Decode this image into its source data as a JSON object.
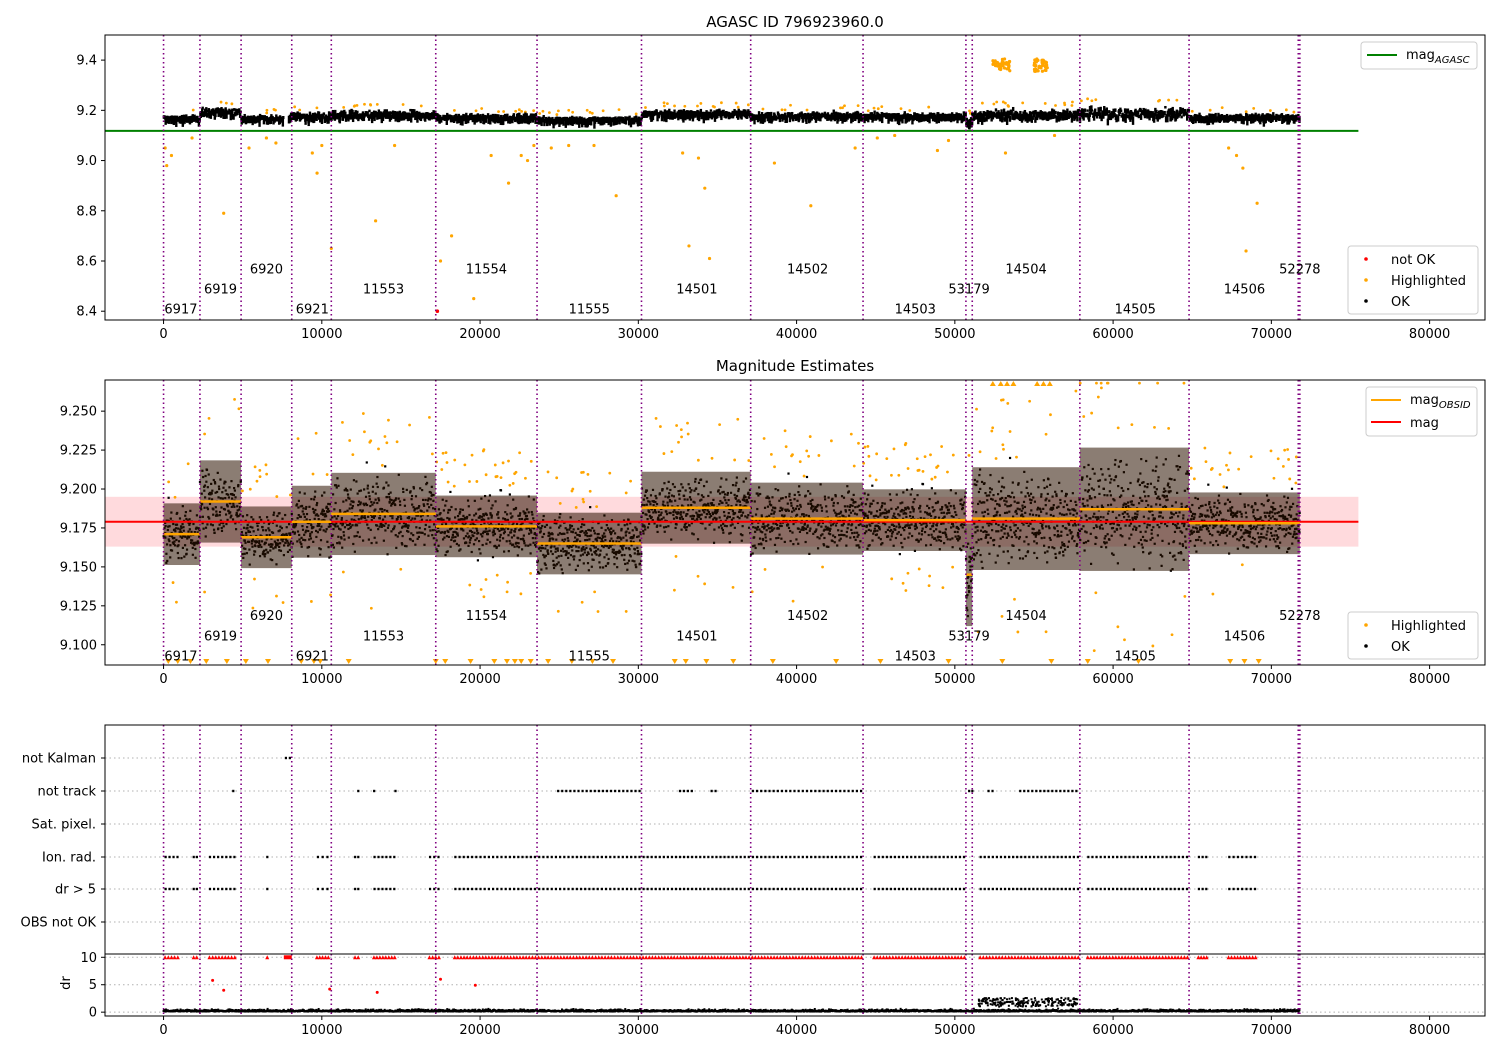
{
  "colors": {
    "ok": "#000000",
    "highlighted": "#ffa500",
    "not_ok": "#ff0000",
    "agasc_line": "#008000",
    "mag_line": "#ff0000",
    "mag_obsid": "#ffa500",
    "obs_boundary": "#800080",
    "mag_band": "#ffdadd"
  },
  "obs_boundaries": [
    0,
    2300,
    4900,
    8100,
    10600,
    17200,
    23600,
    30200,
    37100,
    44200,
    50700,
    51100,
    57900,
    64800,
    71700,
    71800
  ],
  "obs_labels": [
    {
      "id": "6917",
      "x": 1100,
      "level": 0
    },
    {
      "id": "6919",
      "x": 3600,
      "level": 1
    },
    {
      "id": "6920",
      "x": 6500,
      "level": 2
    },
    {
      "id": "6921",
      "x": 9400,
      "level": 0
    },
    {
      "id": "11553",
      "x": 13900,
      "level": 1
    },
    {
      "id": "11554",
      "x": 20400,
      "level": 2
    },
    {
      "id": "11555",
      "x": 26900,
      "level": 0
    },
    {
      "id": "14501",
      "x": 33700,
      "level": 1
    },
    {
      "id": "14502",
      "x": 40700,
      "level": 2
    },
    {
      "id": "14503",
      "x": 47500,
      "level": 0
    },
    {
      "id": "53179",
      "x": 50900,
      "level": 1
    },
    {
      "id": "14504",
      "x": 54500,
      "level": 2
    },
    {
      "id": "14505",
      "x": 61400,
      "level": 0
    },
    {
      "id": "14506",
      "x": 68300,
      "level": 1
    },
    {
      "id": "52278",
      "x": 71800,
      "level": 2
    }
  ],
  "chart_data": [
    {
      "type": "scatter",
      "title": "AGASC ID 796923960.0",
      "xlim": [
        -3700,
        83500
      ],
      "ylim": [
        8.365,
        9.5
      ],
      "xticks": [
        0,
        10000,
        20000,
        30000,
        40000,
        50000,
        60000,
        70000,
        80000
      ],
      "yticks": [
        8.4,
        8.6,
        8.8,
        9.0,
        9.2,
        9.4
      ],
      "ytick_labels": [
        "8.4",
        "8.6",
        "8.8",
        "9.0",
        "9.2",
        "9.4"
      ],
      "mag_agasc": 9.118,
      "mag_agasc_xrange": [
        -3700,
        75500
      ],
      "segment_levels": [
        {
          "x0": 0,
          "x1": 2300,
          "mean": 9.17,
          "spread": 0.03
        },
        {
          "x0": 2300,
          "x1": 4900,
          "mean": 9.195,
          "spread": 0.04
        },
        {
          "x0": 4900,
          "x1": 7600,
          "mean": 9.17,
          "spread": 0.03
        },
        {
          "x0": 7900,
          "x1": 10600,
          "mean": 9.18,
          "spread": 0.035
        },
        {
          "x0": 10600,
          "x1": 17200,
          "mean": 9.185,
          "spread": 0.04
        },
        {
          "x0": 17200,
          "x1": 23600,
          "mean": 9.175,
          "spread": 0.03
        },
        {
          "x0": 23600,
          "x1": 30200,
          "mean": 9.165,
          "spread": 0.03
        },
        {
          "x0": 30200,
          "x1": 37100,
          "mean": 9.19,
          "spread": 0.035
        },
        {
          "x0": 37100,
          "x1": 44200,
          "mean": 9.18,
          "spread": 0.035
        },
        {
          "x0": 44200,
          "x1": 50700,
          "mean": 9.18,
          "spread": 0.03
        },
        {
          "x0": 50700,
          "x1": 51100,
          "mean": 9.15,
          "spread": 0.05
        },
        {
          "x0": 51100,
          "x1": 57900,
          "mean": 9.185,
          "spread": 0.05
        },
        {
          "x0": 57900,
          "x1": 64800,
          "mean": 9.19,
          "spread": 0.06
        },
        {
          "x0": 64800,
          "x1": 71800,
          "mean": 9.175,
          "spread": 0.03
        }
      ],
      "highlighted_outliers": [
        {
          "x": 100,
          "y": 9.05
        },
        {
          "x": 200,
          "y": 8.98
        },
        {
          "x": 500,
          "y": 9.02
        },
        {
          "x": 1800,
          "y": 9.09
        },
        {
          "x": 3800,
          "y": 8.79
        },
        {
          "x": 5400,
          "y": 9.05
        },
        {
          "x": 6500,
          "y": 9.09
        },
        {
          "x": 7100,
          "y": 9.07
        },
        {
          "x": 9400,
          "y": 9.03
        },
        {
          "x": 9700,
          "y": 8.95
        },
        {
          "x": 10000,
          "y": 9.06
        },
        {
          "x": 10600,
          "y": 8.65
        },
        {
          "x": 13400,
          "y": 8.76
        },
        {
          "x": 14600,
          "y": 9.06
        },
        {
          "x": 17500,
          "y": 8.6
        },
        {
          "x": 18200,
          "y": 8.7
        },
        {
          "x": 19600,
          "y": 8.45
        },
        {
          "x": 20700,
          "y": 9.02
        },
        {
          "x": 21800,
          "y": 8.91
        },
        {
          "x": 22600,
          "y": 9.02
        },
        {
          "x": 23000,
          "y": 9.0
        },
        {
          "x": 23400,
          "y": 9.06
        },
        {
          "x": 24500,
          "y": 9.05
        },
        {
          "x": 25600,
          "y": 9.06
        },
        {
          "x": 27200,
          "y": 9.06
        },
        {
          "x": 28600,
          "y": 8.86
        },
        {
          "x": 32800,
          "y": 9.03
        },
        {
          "x": 33200,
          "y": 8.66
        },
        {
          "x": 33800,
          "y": 9.01
        },
        {
          "x": 34200,
          "y": 8.89
        },
        {
          "x": 34500,
          "y": 8.61
        },
        {
          "x": 38600,
          "y": 8.99
        },
        {
          "x": 40900,
          "y": 8.82
        },
        {
          "x": 43700,
          "y": 9.05
        },
        {
          "x": 45100,
          "y": 9.09
        },
        {
          "x": 46200,
          "y": 9.1
        },
        {
          "x": 48900,
          "y": 9.04
        },
        {
          "x": 49600,
          "y": 9.08
        },
        {
          "x": 53200,
          "y": 9.03
        },
        {
          "x": 56300,
          "y": 9.1
        },
        {
          "x": 67300,
          "y": 9.05
        },
        {
          "x": 67800,
          "y": 9.02
        },
        {
          "x": 68200,
          "y": 8.97
        },
        {
          "x": 68400,
          "y": 8.64
        },
        {
          "x": 69100,
          "y": 8.83
        }
      ],
      "highlighted_clusters": [
        {
          "x0": 52400,
          "x1": 53500,
          "y": 9.38
        },
        {
          "x0": 55000,
          "x1": 55900,
          "y": 9.38
        }
      ],
      "not_ok_points": [
        {
          "x": 17300,
          "y": 8.4
        }
      ],
      "legend_upper": [
        "mag_AGASC"
      ],
      "legend_lower": [
        "not OK",
        "Highlighted",
        "OK"
      ],
      "label_y_levels": [
        8.41,
        8.49,
        8.57
      ]
    },
    {
      "type": "scatter",
      "title": "Magnitude Estimates",
      "xlim": [
        -3700,
        83500
      ],
      "ylim": [
        9.087,
        9.27
      ],
      "xticks": [
        0,
        10000,
        20000,
        30000,
        40000,
        50000,
        60000,
        70000,
        80000
      ],
      "yticks": [
        9.1,
        9.125,
        9.15,
        9.175,
        9.2,
        9.225,
        9.25
      ],
      "ytick_labels": [
        "9.100",
        "9.125",
        "9.150",
        "9.175",
        "9.200",
        "9.225",
        "9.250"
      ],
      "mag": 9.179,
      "mag_band": [
        9.163,
        9.195
      ],
      "mag_xrange": [
        -3700,
        75500
      ],
      "mag_obsid": [
        {
          "x0": 0,
          "x1": 2300,
          "value": 9.171
        },
        {
          "x0": 2300,
          "x1": 4900,
          "value": 9.192
        },
        {
          "x0": 4900,
          "x1": 8100,
          "value": 9.169
        },
        {
          "x0": 8100,
          "x1": 10600,
          "value": 9.179
        },
        {
          "x0": 10600,
          "x1": 17200,
          "value": 9.184
        },
        {
          "x0": 17200,
          "x1": 23600,
          "value": 9.176
        },
        {
          "x0": 23600,
          "x1": 30200,
          "value": 9.165
        },
        {
          "x0": 30200,
          "x1": 37100,
          "value": 9.188
        },
        {
          "x0": 37100,
          "x1": 44200,
          "value": 9.181
        },
        {
          "x0": 44200,
          "x1": 50700,
          "value": 9.18
        },
        {
          "x0": 50700,
          "x1": 51100,
          "value": 9.145
        },
        {
          "x0": 51100,
          "x1": 57900,
          "value": 9.181
        },
        {
          "x0": 57900,
          "x1": 64800,
          "value": 9.187
        },
        {
          "x0": 64800,
          "x1": 71800,
          "value": 9.178
        }
      ],
      "legend_upper": [
        "mag_OBSID",
        "mag"
      ],
      "legend_lower": [
        "Highlighted",
        "OK"
      ],
      "label_y_levels": [
        9.093,
        9.106,
        9.119
      ]
    },
    {
      "type": "scatter",
      "xlim": [
        -3700,
        83500
      ],
      "xticks": [
        0,
        10000,
        20000,
        30000,
        40000,
        50000,
        60000,
        70000,
        80000
      ],
      "flag_rows": [
        "not Kalman",
        "not track",
        "Sat. pixel.",
        "Ion. rad.",
        "dr > 5",
        "OBS not OK"
      ],
      "flag_segments": {
        "not Kalman": [
          [
            7600,
            8100
          ]
        ],
        "not track": [
          [
            4300,
            4500
          ],
          [
            12200,
            12400
          ],
          [
            13200,
            13400
          ],
          [
            14600,
            14700
          ],
          [
            24800,
            30200
          ],
          [
            32500,
            33500
          ],
          [
            34500,
            35000
          ],
          [
            37100,
            44200
          ],
          [
            50800,
            51200
          ],
          [
            52000,
            52500
          ],
          [
            54000,
            57800
          ]
        ],
        "Sat. pixel.": [],
        "Ion. rad.": [
          [
            0,
            1000
          ],
          [
            1800,
            2200
          ],
          [
            2800,
            4600
          ],
          [
            6500,
            6600
          ],
          [
            9600,
            10500
          ],
          [
            12000,
            12400
          ],
          [
            13200,
            14700
          ],
          [
            16700,
            17500
          ],
          [
            18300,
            23600
          ],
          [
            23600,
            30200
          ],
          [
            30200,
            37100
          ],
          [
            37100,
            44200
          ],
          [
            44800,
            50700
          ],
          [
            51500,
            57900
          ],
          [
            58300,
            64800
          ],
          [
            65300,
            66000
          ],
          [
            67200,
            69100
          ]
        ],
        "dr > 5": [
          [
            0,
            1000
          ],
          [
            1800,
            2200
          ],
          [
            2800,
            4600
          ],
          [
            6500,
            6600
          ],
          [
            9600,
            10500
          ],
          [
            12000,
            12400
          ],
          [
            13200,
            14700
          ],
          [
            16700,
            17500
          ],
          [
            18300,
            23600
          ],
          [
            23600,
            30200
          ],
          [
            30200,
            37100
          ],
          [
            37100,
            44200
          ],
          [
            44800,
            50700
          ],
          [
            51500,
            57900
          ],
          [
            58300,
            64800
          ],
          [
            65300,
            66000
          ],
          [
            67200,
            69100
          ]
        ],
        "OBS not OK": []
      },
      "dr": {
        "ylabel": "dr",
        "ylim": [
          -0.7,
          10.6
        ],
        "yticks": [
          0,
          5,
          10
        ],
        "ytick_labels": [
          "0",
          "5",
          "10"
        ],
        "capped_value": 10,
        "red_points": [
          {
            "x": 3100,
            "y": 5.8
          },
          {
            "x": 3800,
            "y": 4.0
          },
          {
            "x": 10500,
            "y": 4.2
          },
          {
            "x": 13500,
            "y": 3.6
          },
          {
            "x": 17500,
            "y": 6.0
          },
          {
            "x": 19700,
            "y": 4.9
          }
        ]
      }
    }
  ]
}
